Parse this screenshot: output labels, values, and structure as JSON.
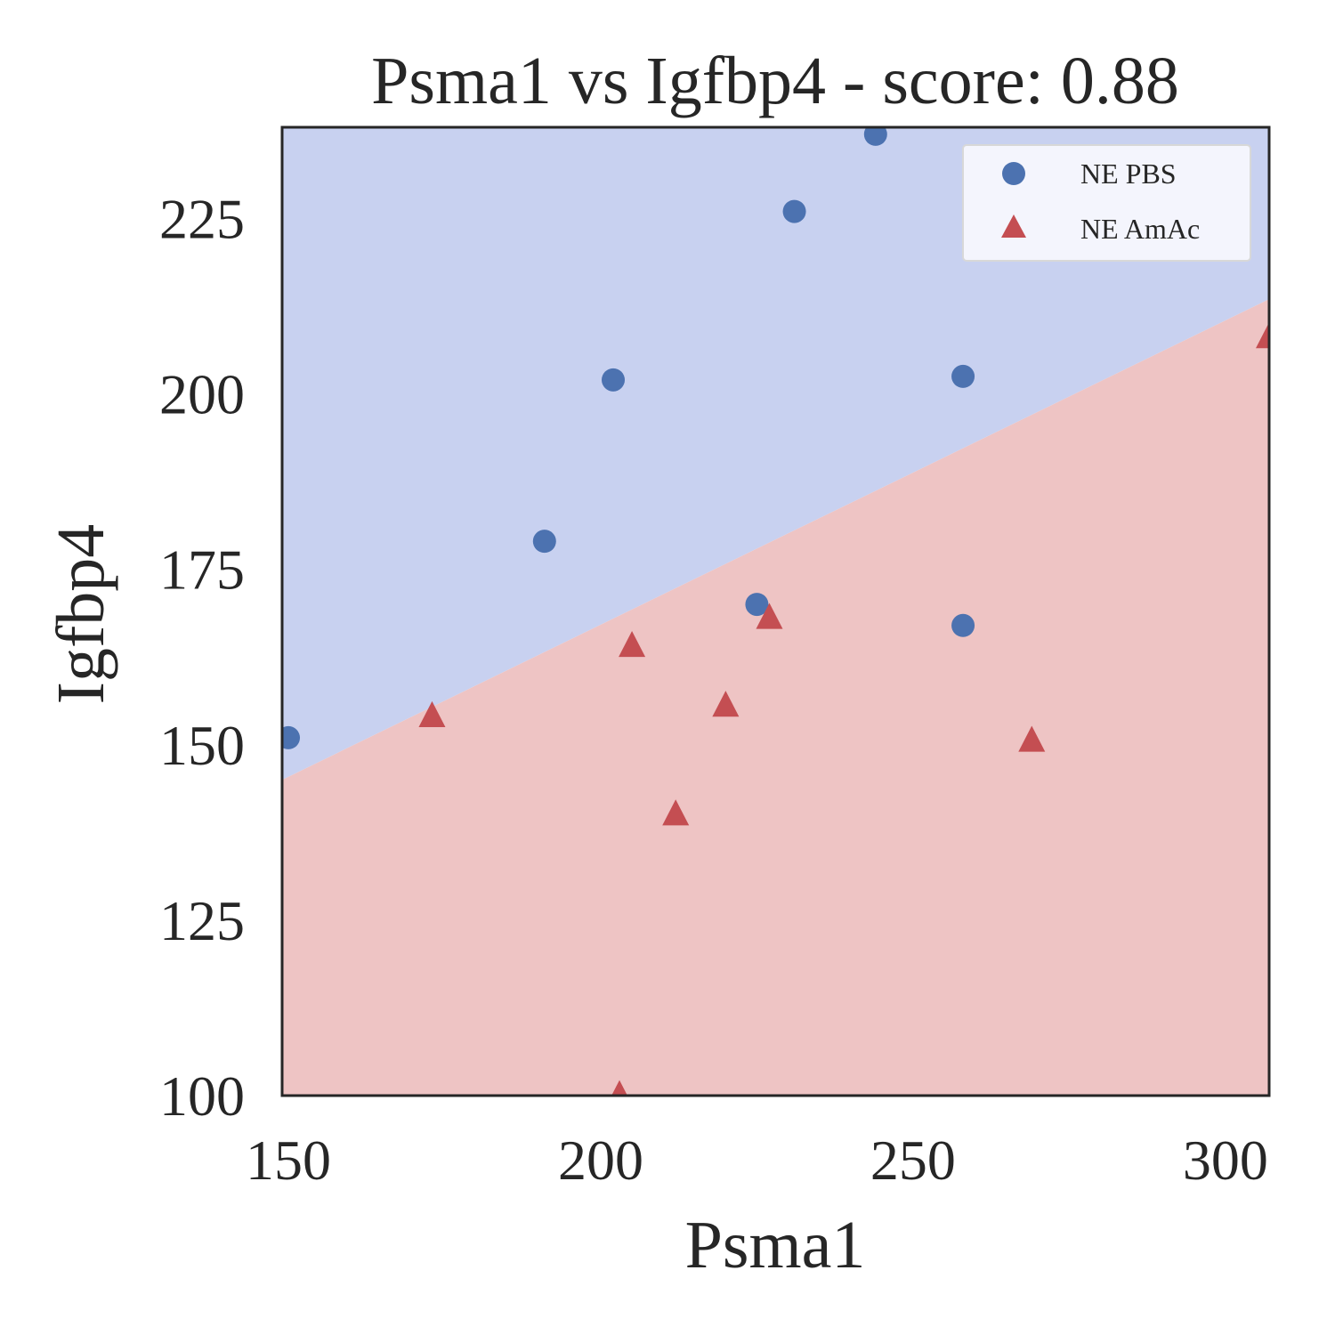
{
  "chart_data": {
    "type": "scatter",
    "title": "Psma1 vs Igfbp4 - score: 0.88",
    "xlabel": "Psma1",
    "ylabel": "Igfbp4",
    "xlim": [
      149,
      307
    ],
    "ylim": [
      100,
      238
    ],
    "xticks": [
      150,
      200,
      250,
      300
    ],
    "yticks": [
      100,
      125,
      150,
      175,
      200,
      225
    ],
    "xtick_labels": [
      "150",
      "200",
      "250",
      "300"
    ],
    "ytick_labels": [
      "100",
      "125",
      "150",
      "175",
      "200",
      "225"
    ],
    "grid": false,
    "legend_position": "top-right",
    "decision_boundary": {
      "x": [
        149,
        307
      ],
      "y": [
        145,
        213.5
      ],
      "above_class": "NE PBS",
      "below_class": "NE AmAc",
      "above_color": "#c8d1f0",
      "below_color": "#eec4c4"
    },
    "series": [
      {
        "name": "NE PBS",
        "marker": "circle",
        "color": "#4c72b0",
        "points": [
          {
            "x": 150,
            "y": 151
          },
          {
            "x": 191,
            "y": 179
          },
          {
            "x": 202,
            "y": 202
          },
          {
            "x": 225,
            "y": 170
          },
          {
            "x": 231,
            "y": 226
          },
          {
            "x": 244,
            "y": 237
          },
          {
            "x": 258,
            "y": 167
          },
          {
            "x": 258,
            "y": 202.5
          }
        ]
      },
      {
        "name": "NE AmAc",
        "marker": "triangle",
        "color": "#c44e52",
        "points": [
          {
            "x": 173,
            "y": 154
          },
          {
            "x": 203,
            "y": 100
          },
          {
            "x": 205,
            "y": 164
          },
          {
            "x": 212,
            "y": 140
          },
          {
            "x": 220,
            "y": 155.5
          },
          {
            "x": 227,
            "y": 168
          },
          {
            "x": 269,
            "y": 150.5
          },
          {
            "x": 307,
            "y": 208
          }
        ]
      }
    ]
  }
}
